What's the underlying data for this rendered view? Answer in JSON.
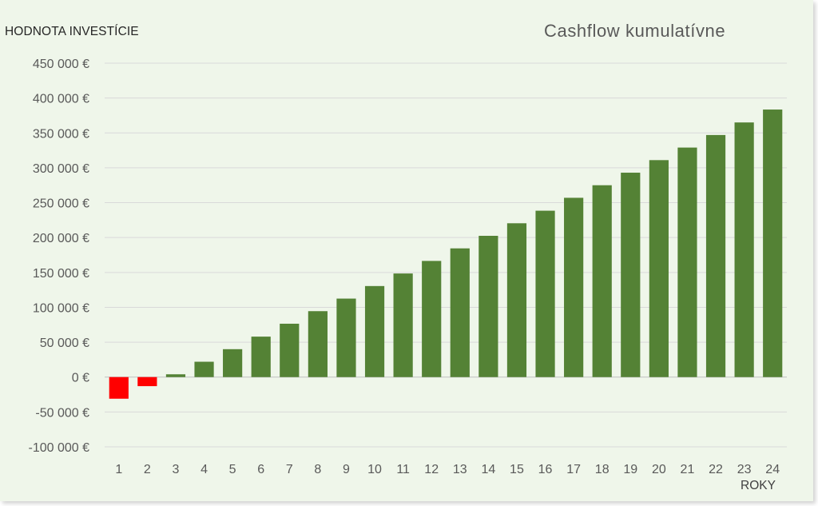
{
  "chart_data": {
    "type": "bar",
    "title": "Cashflow kumulatívne",
    "ylabel": "HODNOTA INVESTÍCIE",
    "xlabel": "ROKY",
    "categories": [
      "1",
      "2",
      "3",
      "4",
      "5",
      "6",
      "7",
      "8",
      "9",
      "10",
      "11",
      "12",
      "13",
      "14",
      "15",
      "16",
      "17",
      "18",
      "19",
      "20",
      "21",
      "22",
      "23",
      "24"
    ],
    "values": [
      -31000,
      -13000,
      4000,
      22000,
      40000,
      58000,
      76500,
      94500,
      112500,
      130500,
      148500,
      166500,
      184500,
      202500,
      220500,
      238500,
      257000,
      275000,
      293000,
      311000,
      329000,
      347000,
      365000,
      383500
    ],
    "ylim": [
      -100000,
      450000
    ],
    "yticks": [
      450000,
      400000,
      350000,
      300000,
      250000,
      200000,
      150000,
      100000,
      50000,
      0,
      -50000,
      -100000
    ],
    "ytick_labels": [
      "450 000 €",
      "400 000 €",
      "350 000 €",
      "300 000 €",
      "250 000 €",
      "200 000 €",
      "150 000 €",
      "100 000 €",
      "50 000 €",
      "0 €",
      "-50 000 €",
      "-100 000 €"
    ],
    "grid": true,
    "colors": {
      "positive": "#548235",
      "negative": "#ff0000",
      "grid": "#d9d9d9",
      "background": "#eff6ea"
    }
  }
}
